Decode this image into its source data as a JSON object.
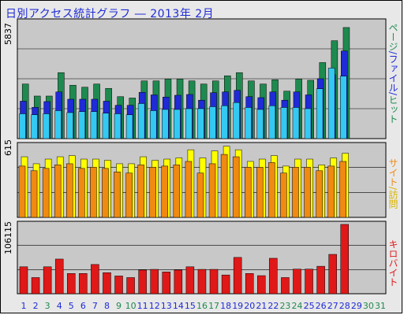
{
  "title": "日別アクセス統計グラフ ―  2013年 2月",
  "legend": {
    "top": [
      {
        "text": "ページ",
        "color": "#1e8a4f"
      },
      {
        "text": "/",
        "color": "#1f2bd6"
      },
      {
        "text": "ファイル",
        "color": "#1f2bd6"
      },
      {
        "text": "/",
        "color": "#1f2bd6"
      },
      {
        "text": "ヒット",
        "color": "#1e8a4f"
      }
    ],
    "middle": [
      {
        "text": "サイト",
        "color": "#f08a10"
      },
      {
        "text": "/",
        "color": "#d8b400"
      },
      {
        "text": "訪問",
        "color": "#d8b400"
      }
    ],
    "bottom": [
      {
        "text": "キロバイト",
        "color": "#e01818"
      }
    ]
  },
  "colors": {
    "panel_bg": "#c8c8c8",
    "grid": "#000000",
    "hits": "#1e8a4f",
    "files": "#1f2bd6",
    "pages": "#33c9f2",
    "visits": "#ffff00",
    "sites": "#f08a10",
    "kbytes": "#e01818",
    "weekday_label": "#1f2bd6",
    "weekend_label": "#1e8a4f"
  },
  "chart_data": [
    {
      "type": "bar",
      "y_max_label": "5837",
      "ylim": [
        0,
        5837
      ],
      "categories": [
        "1",
        "2",
        "3",
        "4",
        "5",
        "6",
        "7",
        "8",
        "9",
        "10",
        "11",
        "12",
        "13",
        "14",
        "15",
        "16",
        "17",
        "18",
        "19",
        "20",
        "21",
        "22",
        "23",
        "24",
        "25",
        "26",
        "27",
        "28",
        "29",
        "30",
        "31"
      ],
      "series": [
        {
          "name": "ヒット",
          "values": [
            2770,
            2160,
            2160,
            3350,
            2710,
            2610,
            2770,
            2550,
            2130,
            2060,
            2930,
            2930,
            3020,
            3020,
            2930,
            2770,
            2930,
            3190,
            3350,
            2930,
            2770,
            2990,
            2410,
            3020,
            2960,
            3860,
            4970,
            5640,
            0,
            0,
            0
          ]
        },
        {
          "name": "ファイル",
          "values": [
            1900,
            1590,
            1880,
            2370,
            2000,
            2000,
            2000,
            1900,
            1690,
            1690,
            2350,
            2220,
            2110,
            2200,
            2240,
            1950,
            2330,
            2370,
            2450,
            2130,
            2080,
            2370,
            1950,
            2370,
            2220,
            3040,
            3250,
            4450,
            0,
            0,
            0
          ]
        },
        {
          "name": "ページ",
          "values": [
            1260,
            1210,
            1260,
            1420,
            1320,
            1370,
            1370,
            1290,
            1260,
            1210,
            1780,
            1420,
            1480,
            1480,
            1520,
            1520,
            1620,
            1670,
            1830,
            1580,
            1480,
            1670,
            1580,
            1580,
            1520,
            2530,
            3580,
            3170,
            0,
            0,
            0
          ]
        }
      ]
    },
    {
      "type": "bar",
      "y_max_label": "615",
      "ylim": [
        0,
        615
      ],
      "categories": [
        "1",
        "2",
        "3",
        "4",
        "5",
        "6",
        "7",
        "8",
        "9",
        "10",
        "11",
        "12",
        "13",
        "14",
        "15",
        "16",
        "17",
        "18",
        "19",
        "20",
        "21",
        "22",
        "23",
        "24",
        "25",
        "26",
        "27",
        "28",
        "29",
        "30",
        "31"
      ],
      "series": [
        {
          "name": "訪問",
          "values": [
            520,
            460,
            500,
            520,
            530,
            500,
            500,
            490,
            460,
            460,
            520,
            490,
            500,
            510,
            580,
            510,
            570,
            610,
            580,
            480,
            500,
            530,
            440,
            500,
            500,
            450,
            510,
            550,
            0,
            0,
            0
          ]
        },
        {
          "name": "サイト",
          "values": [
            440,
            400,
            420,
            450,
            460,
            420,
            430,
            420,
            390,
            380,
            450,
            430,
            440,
            450,
            480,
            380,
            460,
            540,
            520,
            430,
            430,
            470,
            380,
            430,
            430,
            400,
            440,
            480,
            0,
            0,
            0
          ]
        }
      ]
    },
    {
      "type": "bar",
      "y_max_label": "106115",
      "ylim": [
        0,
        106115
      ],
      "categories": [
        "1",
        "2",
        "3",
        "4",
        "5",
        "6",
        "7",
        "8",
        "9",
        "10",
        "11",
        "12",
        "13",
        "14",
        "15",
        "16",
        "17",
        "18",
        "19",
        "20",
        "21",
        "22",
        "23",
        "24",
        "25",
        "26",
        "27",
        "28",
        "29",
        "30",
        "31"
      ],
      "series": [
        {
          "name": "キロバイト",
          "values": [
            40800,
            24500,
            40800,
            52500,
            30700,
            30700,
            44300,
            31900,
            26900,
            24500,
            35900,
            36900,
            33000,
            35900,
            40800,
            36900,
            36900,
            28400,
            55000,
            30700,
            27400,
            53700,
            24500,
            37300,
            37300,
            41600,
            59600,
            105000,
            0,
            0,
            0
          ]
        }
      ]
    }
  ],
  "x_labels": [
    {
      "t": "1",
      "we": false
    },
    {
      "t": "2",
      "we": false
    },
    {
      "t": "3",
      "we": true
    },
    {
      "t": "4",
      "we": false
    },
    {
      "t": "5",
      "we": false
    },
    {
      "t": "6",
      "we": false
    },
    {
      "t": "7",
      "we": false
    },
    {
      "t": "8",
      "we": false
    },
    {
      "t": "9",
      "we": true
    },
    {
      "t": "10",
      "we": true
    },
    {
      "t": "11",
      "we": false
    },
    {
      "t": "12",
      "we": false
    },
    {
      "t": "13",
      "we": false
    },
    {
      "t": "14",
      "we": false
    },
    {
      "t": "15",
      "we": false
    },
    {
      "t": "16",
      "we": true
    },
    {
      "t": "17",
      "we": true
    },
    {
      "t": "18",
      "we": false
    },
    {
      "t": "19",
      "we": false
    },
    {
      "t": "20",
      "we": false
    },
    {
      "t": "21",
      "we": false
    },
    {
      "t": "22",
      "we": false
    },
    {
      "t": "23",
      "we": true
    },
    {
      "t": "24",
      "we": true
    },
    {
      "t": "25",
      "we": false
    },
    {
      "t": "26",
      "we": false
    },
    {
      "t": "27",
      "we": false
    },
    {
      "t": "28",
      "we": false
    },
    {
      "t": "29",
      "we": false
    },
    {
      "t": "30",
      "we": true
    },
    {
      "t": "31",
      "we": true
    }
  ]
}
